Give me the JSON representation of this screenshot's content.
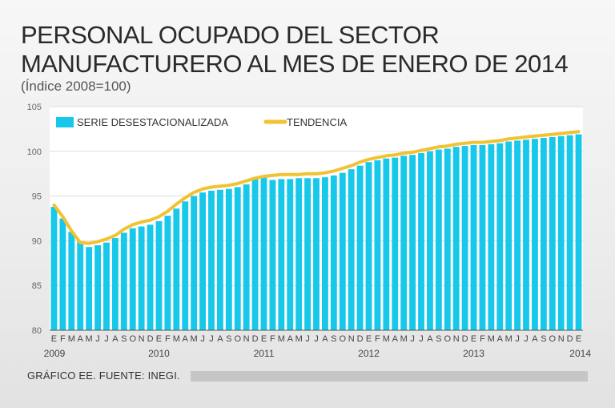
{
  "title_line1": "PERSONAL OCUPADO DEL SECTOR",
  "title_line2": "MANUFACTURERO AL MES DE ENERO DE 2014",
  "subtitle": "(Índice 2008=100)",
  "source": "GRÁFICO EE. FUENTE: INEGI.",
  "colors": {
    "bars": "#18c8ea",
    "trend": "#f2c230",
    "grid": "#dddddd",
    "axis": "#555555"
  },
  "chart_data": {
    "type": "bar",
    "title": "PERSONAL OCUPADO DEL SECTOR MANUFACTURERO AL MES DE ENERO DE 2014",
    "subtitle": "(Índice 2008=100)",
    "xlabel": "",
    "ylabel": "",
    "ylim": [
      80,
      105
    ],
    "yticks": [
      80,
      85,
      90,
      95,
      100,
      105
    ],
    "legend": "top-left",
    "grid": true,
    "month_labels": [
      "E",
      "F",
      "M",
      "A",
      "M",
      "J",
      "J",
      "A",
      "S",
      "O",
      "N",
      "D",
      "E",
      "F",
      "M",
      "A",
      "M",
      "J",
      "J",
      "A",
      "S",
      "O",
      "N",
      "D",
      "E",
      "F",
      "M",
      "A",
      "M",
      "J",
      "J",
      "A",
      "S",
      "O",
      "N",
      "D",
      "E",
      "F",
      "M",
      "A",
      "M",
      "J",
      "J",
      "A",
      "S",
      "O",
      "N",
      "D",
      "E",
      "F",
      "M",
      "A",
      "M",
      "J",
      "J",
      "A",
      "S",
      "O",
      "N",
      "D",
      "E"
    ],
    "year_labels": [
      {
        "label": "2009",
        "index": 0
      },
      {
        "label": "2010",
        "index": 12
      },
      {
        "label": "2011",
        "index": 24
      },
      {
        "label": "2012",
        "index": 36
      },
      {
        "label": "2013",
        "index": 48
      },
      {
        "label": "2014",
        "index": 60
      }
    ],
    "series": [
      {
        "name": "SERIE DESESTACIONALIZADA",
        "type": "bar",
        "values": [
          93.8,
          92.5,
          91.0,
          89.9,
          89.3,
          89.5,
          89.8,
          90.3,
          90.9,
          91.4,
          91.6,
          91.8,
          92.2,
          92.8,
          93.6,
          94.4,
          95.0,
          95.4,
          95.6,
          95.7,
          95.8,
          96.0,
          96.3,
          96.9,
          97.3,
          96.8,
          96.9,
          96.9,
          97.0,
          97.0,
          97.0,
          97.1,
          97.3,
          97.6,
          98.0,
          98.4,
          98.8,
          99.0,
          99.2,
          99.3,
          99.5,
          99.6,
          99.8,
          100.0,
          100.2,
          100.3,
          100.5,
          100.6,
          100.7,
          100.7,
          100.8,
          100.9,
          101.1,
          101.2,
          101.3,
          101.4,
          101.5,
          101.6,
          101.7,
          101.8,
          101.9
        ]
      },
      {
        "name": "TENDENCIA",
        "type": "line",
        "values": [
          94.0,
          92.7,
          91.1,
          89.8,
          89.7,
          89.9,
          90.2,
          90.6,
          91.3,
          91.8,
          92.1,
          92.3,
          92.7,
          93.3,
          94.1,
          94.8,
          95.4,
          95.8,
          96.0,
          96.1,
          96.2,
          96.4,
          96.7,
          97.0,
          97.2,
          97.3,
          97.4,
          97.4,
          97.4,
          97.5,
          97.5,
          97.6,
          97.8,
          98.1,
          98.4,
          98.8,
          99.1,
          99.3,
          99.5,
          99.6,
          99.8,
          99.9,
          100.1,
          100.3,
          100.5,
          100.6,
          100.8,
          100.9,
          101.0,
          101.0,
          101.1,
          101.2,
          101.4,
          101.5,
          101.6,
          101.7,
          101.8,
          101.9,
          102.0,
          102.1,
          102.2
        ]
      }
    ]
  }
}
